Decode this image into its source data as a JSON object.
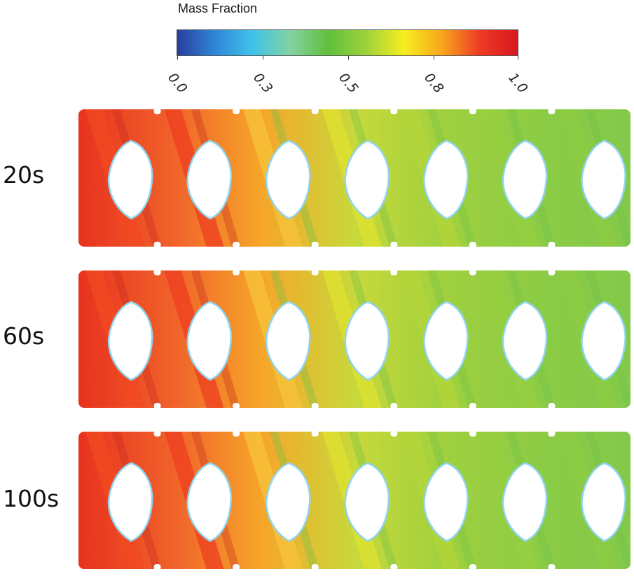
{
  "legend": {
    "title": "Mass Fraction",
    "ticks": [
      "0.0",
      "0.3",
      "0.5",
      "0.8",
      "1.0"
    ],
    "colors": [
      "#2a3e9e",
      "#2f86d6",
      "#3fc3ea",
      "#83d2a0",
      "#60bf3c",
      "#9fd23c",
      "#f6ee1f",
      "#f8a51c",
      "#ee3b24",
      "#d7171f"
    ]
  },
  "panels": [
    {
      "time": "20s"
    },
    {
      "time": "60s"
    },
    {
      "time": "100s"
    }
  ]
}
